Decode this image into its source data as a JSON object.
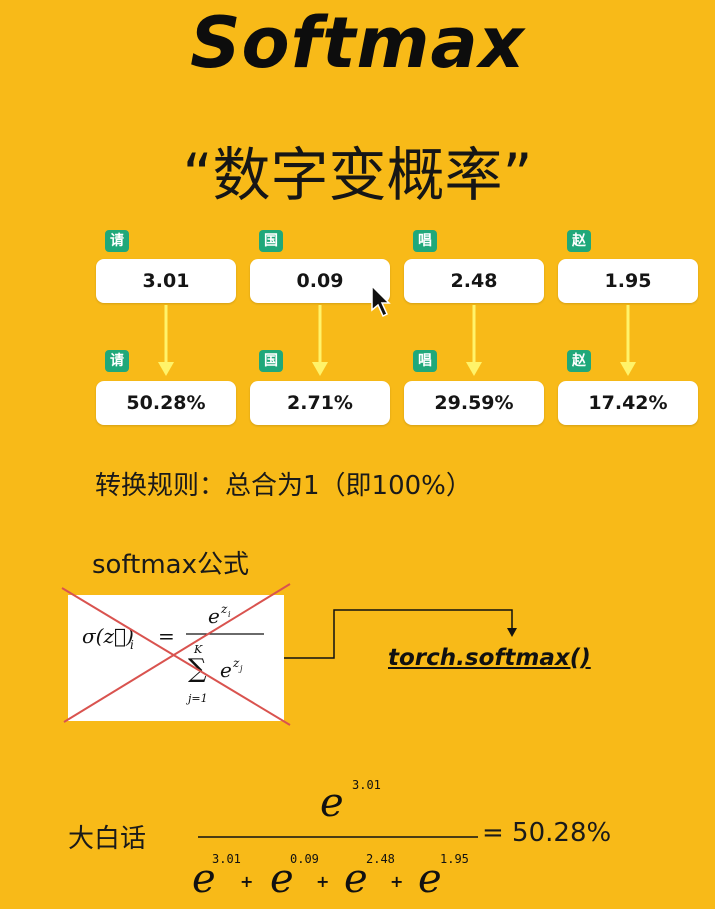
{
  "title": "Softmax",
  "subtitle": "“数字变概率”",
  "tokens": [
    {
      "tag": "请",
      "score": "3.01",
      "prob": "50.28%"
    },
    {
      "tag": "国",
      "score": "0.09",
      "prob": "2.71%"
    },
    {
      "tag": "唱",
      "score": "2.48",
      "prob": "29.59%"
    },
    {
      "tag": "赵",
      "score": "1.95",
      "prob": "17.42%"
    }
  ],
  "rule_text": "转换规则：总合为1（即100%）",
  "formula_label": "softmax公式",
  "formula": {
    "lhs": "σ(z⃗)",
    "lhs_sub": "i",
    "equals": "=",
    "num_base": "e",
    "num_exp": "z",
    "num_exp_sub": "i",
    "sum_top": "K",
    "sum_sign": "∑",
    "sum_bottom": "j=1",
    "den_base": "e",
    "den_exp": "z",
    "den_exp_sub": "j"
  },
  "torch_label": "torch.softmax()",
  "plain_label": "大白话",
  "plain": {
    "numerator_base": "e",
    "numerator_exp": "3.01",
    "terms": [
      {
        "base": "e",
        "exp": "3.01"
      },
      {
        "base": "e",
        "exp": "0.09"
      },
      {
        "base": "e",
        "exp": "2.48"
      },
      {
        "base": "e",
        "exp": "1.95"
      }
    ],
    "plus": "+",
    "result": "= 50.28%"
  },
  "colors": {
    "background": "#F8BA18",
    "tag": "#1FA87A",
    "arrow": "#FFF36A",
    "cross": "#D9534F"
  }
}
